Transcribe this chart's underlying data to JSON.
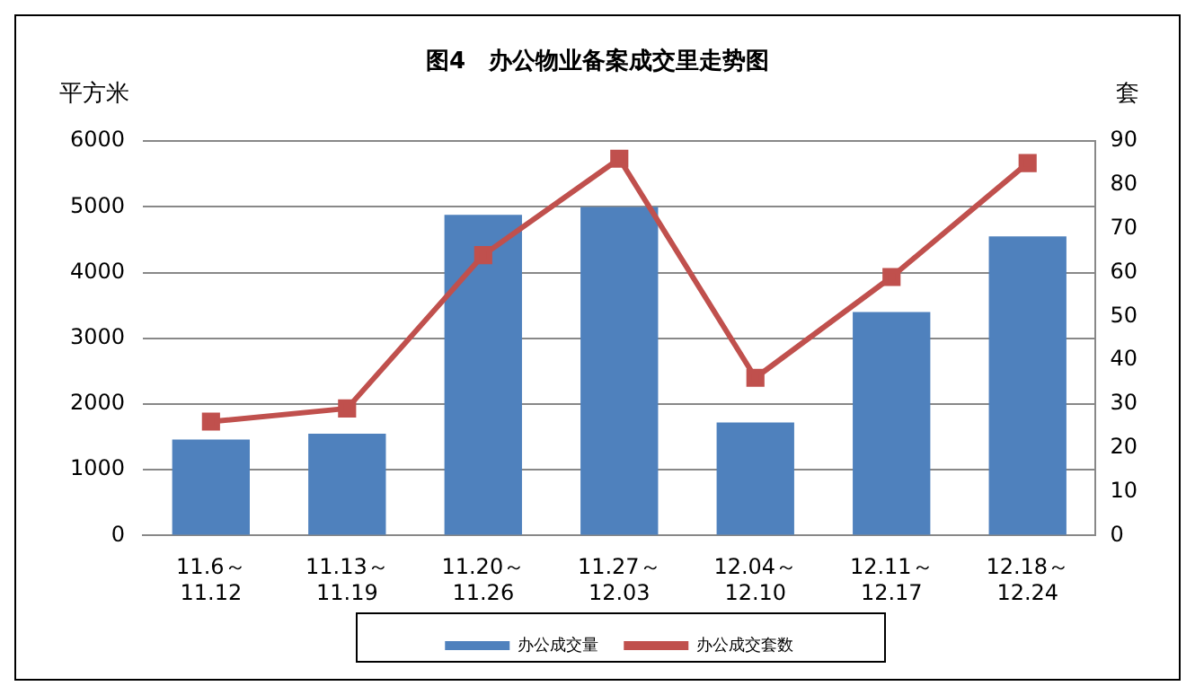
{
  "chart_data": {
    "type": "bar",
    "title": "图4　办公物业备案成交里走势图",
    "ylabel": "平方米",
    "y2label": "套",
    "categories": [
      "11.6～11.12",
      "11.13～11.19",
      "11.20～11.26",
      "11.27～12.03",
      "12.04～12.10",
      "12.11～12.17",
      "12.18～12.24"
    ],
    "series": [
      {
        "name": "办公成交量",
        "color": "#4f81bd",
        "values": [
          1460,
          1550,
          4880,
          5000,
          1720,
          3400,
          4550
        ]
      },
      {
        "name": "办公成交套数",
        "type": "line",
        "axis": "y2",
        "color": "#c0504d",
        "marker": "square",
        "values": [
          26,
          29,
          64,
          86,
          36,
          59,
          85
        ]
      }
    ],
    "ylim": [
      0,
      6000
    ],
    "yticks": [
      0,
      1000,
      2000,
      3000,
      4000,
      5000,
      6000
    ],
    "y2lim": [
      0,
      90
    ],
    "y2ticks": [
      0,
      10,
      20,
      30,
      40,
      50,
      60,
      70,
      80,
      90
    ],
    "grid": "y",
    "legend": "bottom"
  }
}
